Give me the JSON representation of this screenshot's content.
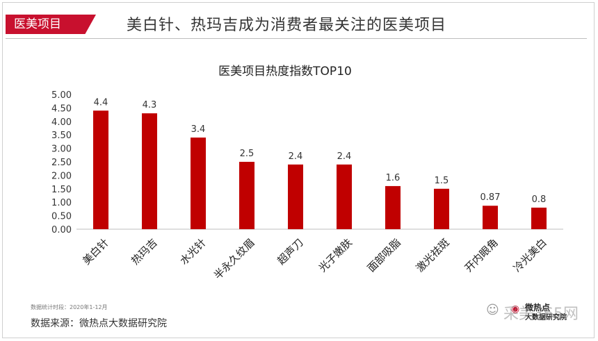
{
  "header": {
    "tag": "医美项目",
    "headline": "美白针、热玛吉成为消费者最关注的医美项目"
  },
  "chart_data": {
    "type": "bar",
    "title": "医美项目热度指数TOP10",
    "categories": [
      "美白针",
      "热玛吉",
      "水光针",
      "半永久纹眉",
      "超声刀",
      "光子嫩肤",
      "面部吸脂",
      "激光祛斑",
      "开内眼角",
      "冷光美白"
    ],
    "values": [
      4.4,
      4.3,
      3.4,
      2.5,
      2.4,
      2.4,
      1.6,
      1.5,
      0.87,
      0.8
    ],
    "value_labels": [
      "4.4",
      "4.3",
      "3.4",
      "2.5",
      "2.4",
      "2.4",
      "1.6",
      "1.5",
      "0.87",
      "0.8"
    ],
    "y_ticks": [
      "0.00",
      "0.50",
      "1.00",
      "1.50",
      "2.00",
      "2.50",
      "3.00",
      "3.50",
      "4.00",
      "4.50",
      "5.00"
    ],
    "ylim": [
      0,
      5
    ],
    "xlabel": "",
    "ylabel": "",
    "grid": false,
    "bar_color": "#c00000"
  },
  "footer": {
    "note": "数据统计时段：2020年1-12月",
    "source": "数据来源：微热点大数据研究院",
    "logo_top": "微热点",
    "logo_bottom": "大数据研究院",
    "watermark": "采美365网"
  }
}
